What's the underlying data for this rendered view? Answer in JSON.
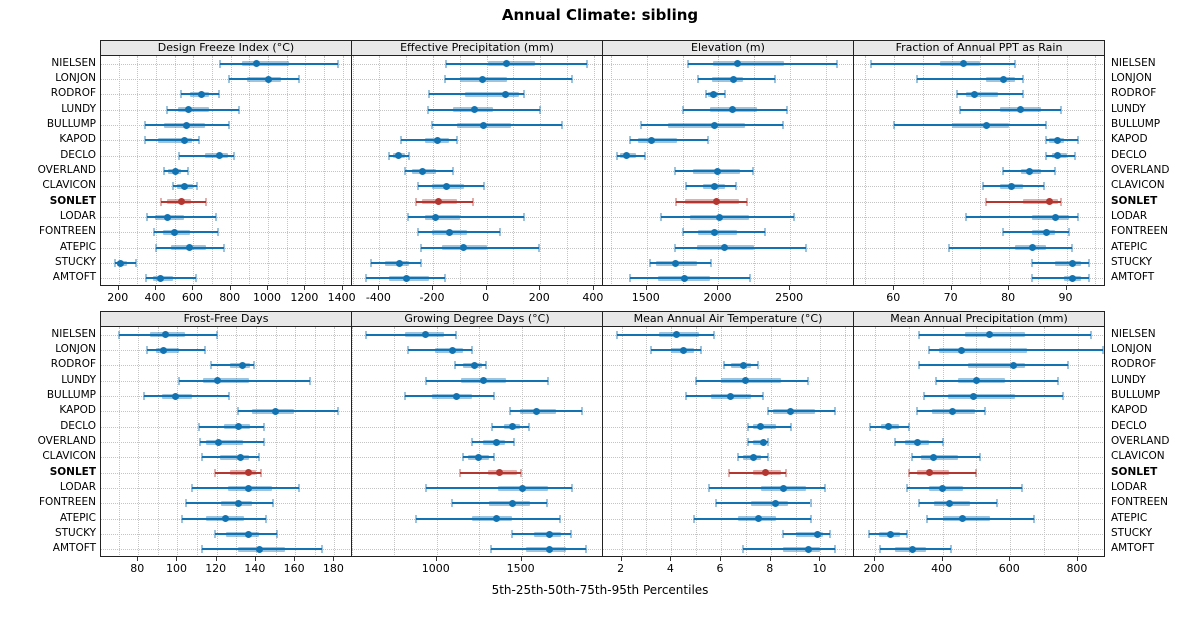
{
  "chart_data": {
    "type": "dotplot",
    "title": "Annual Climate: sibling",
    "xlabel": "5th-25th-50th-75th-95th Percentiles",
    "percentiles": [
      5,
      25,
      50,
      75,
      95
    ],
    "legend_position": "none",
    "grid_layout": {
      "rows": 2,
      "columns": 4
    },
    "sites_top_to_bottom": [
      "NIELSEN",
      "LONJON",
      "RODROF",
      "LUNDY",
      "BULLUMP",
      "KAPOD",
      "DECLO",
      "OVERLAND",
      "CLAVICON",
      "SONLET",
      "LODAR",
      "FONTREEN",
      "ATEPIC",
      "STUCKY",
      "AMTOFT"
    ],
    "highlight_site": "SONLET",
    "colors": {
      "series": "#1273b3",
      "series_band": "rgba(18,115,179,0.42)",
      "highlight": "#b33630",
      "highlight_band": "rgba(179,54,48,0.40)",
      "strip_bg": "#e8e8e8",
      "grid": "#c4c4c4",
      "border": "#222222"
    },
    "panels": [
      {
        "title": "Design Freeze Index (°C)",
        "xlim": [
          105,
          1450
        ],
        "ticks": [
          200,
          400,
          600,
          800,
          1000,
          1200,
          1400
        ],
        "grid_step": 100,
        "values": {
          "NIELSEN": [
            745,
            860,
            940,
            1110,
            1375
          ],
          "LONJON": [
            790,
            890,
            1000,
            1070,
            1165
          ],
          "RODROF": [
            535,
            580,
            645,
            685,
            735
          ],
          "LUNDY": [
            460,
            515,
            575,
            685,
            845
          ],
          "BULLUMP": [
            340,
            445,
            565,
            660,
            790
          ],
          "KAPOD": [
            340,
            410,
            555,
            595,
            630
          ],
          "DECLO": [
            525,
            660,
            740,
            785,
            820
          ],
          "OVERLAND": [
            445,
            465,
            505,
            535,
            570
          ],
          "CLAVICON": [
            490,
            510,
            550,
            600,
            620
          ],
          "SONLET": [
            425,
            460,
            535,
            585,
            670
          ],
          "LODAR": [
            350,
            395,
            460,
            550,
            720
          ],
          "FONTREEN": [
            390,
            435,
            500,
            580,
            730
          ],
          "ATEPIC": [
            400,
            480,
            580,
            670,
            765
          ],
          "STUCKY": [
            180,
            190,
            210,
            245,
            295
          ],
          "AMTOFT": [
            345,
            385,
            425,
            490,
            615
          ]
        }
      },
      {
        "title": "Effective Precipitation (mm)",
        "xlim": [
          -502,
          434
        ],
        "ticks": [
          -400,
          -200,
          0,
          200,
          400
        ],
        "grid_step": 100,
        "values": {
          "NIELSEN": [
            -150,
            5,
            75,
            180,
            375
          ],
          "LONJON": [
            -155,
            -100,
            -15,
            75,
            320
          ],
          "RODROF": [
            -215,
            -80,
            70,
            120,
            140
          ],
          "LUNDY": [
            -220,
            -125,
            -45,
            25,
            200
          ],
          "BULLUMP": [
            -205,
            -110,
            -10,
            90,
            280
          ],
          "KAPOD": [
            -320,
            -230,
            -185,
            -140,
            -110
          ],
          "DECLO": [
            -365,
            -350,
            -330,
            -305,
            -290
          ],
          "OVERLAND": [
            -305,
            -280,
            -240,
            -190,
            -125
          ],
          "CLAVICON": [
            -255,
            -205,
            -150,
            -85,
            -10
          ],
          "SONLET": [
            -265,
            -240,
            -180,
            -110,
            -50
          ],
          "LODAR": [
            -295,
            -230,
            -190,
            -100,
            140
          ],
          "FONTREEN": [
            -255,
            -205,
            -140,
            -75,
            50
          ],
          "ATEPIC": [
            -245,
            -165,
            -85,
            0,
            195
          ],
          "STUCKY": [
            -430,
            -380,
            -325,
            -290,
            -245
          ],
          "AMTOFT": [
            -450,
            -365,
            -300,
            -215,
            -155
          ]
        }
      },
      {
        "title": "Elevation (m)",
        "xlim": [
          1195,
          2945
        ],
        "ticks": [
          1500,
          2000,
          2500
        ],
        "grid_step": 250,
        "values": {
          "NIELSEN": [
            1785,
            1965,
            2135,
            2455,
            2825
          ],
          "LONJON": [
            1855,
            1955,
            2105,
            2170,
            2395
          ],
          "RODROF": [
            1910,
            1930,
            1965,
            2000,
            2045
          ],
          "LUNDY": [
            1750,
            1940,
            2100,
            2270,
            2480
          ],
          "BULLUMP": [
            1460,
            1650,
            1970,
            2185,
            2450
          ],
          "KAPOD": [
            1380,
            1440,
            1530,
            1710,
            1925
          ],
          "DECLO": [
            1295,
            1315,
            1360,
            1425,
            1490
          ],
          "OVERLAND": [
            1700,
            1825,
            1990,
            2150,
            2240
          ],
          "CLAVICON": [
            1775,
            1895,
            1975,
            2045,
            2125
          ],
          "SONLET": [
            1705,
            1765,
            1985,
            2140,
            2200
          ],
          "LODAR": [
            1600,
            1800,
            2010,
            2210,
            2525
          ],
          "FONTREEN": [
            1750,
            1860,
            1975,
            2130,
            2325
          ],
          "ATEPIC": [
            1700,
            1850,
            2045,
            2245,
            2610
          ],
          "STUCKY": [
            1525,
            1565,
            1700,
            1850,
            1945
          ],
          "AMTOFT": [
            1385,
            1580,
            1765,
            1940,
            2220
          ]
        }
      },
      {
        "title": "Fraction of Annual PPT as Rain",
        "xlim": [
          53,
          96.7
        ],
        "ticks": [
          60,
          70,
          80,
          90
        ],
        "grid_step": 5,
        "values": {
          "NIELSEN": [
            56,
            68,
            72,
            75,
            81
          ],
          "LONJON": [
            64,
            76,
            79,
            81,
            82.5
          ],
          "RODROF": [
            71,
            72.5,
            74,
            78,
            82.5
          ],
          "LUNDY": [
            71.5,
            78.5,
            82,
            85.5,
            89
          ],
          "BULLUMP": [
            60,
            70,
            76,
            80,
            86.5
          ],
          "KAPOD": [
            86.5,
            87,
            88.5,
            89.5,
            92
          ],
          "DECLO": [
            86.5,
            87.5,
            88.5,
            90,
            91.5
          ],
          "OVERLAND": [
            79,
            82,
            83.5,
            85.5,
            88
          ],
          "CLAVICON": [
            75.5,
            78.5,
            80.5,
            82.5,
            86
          ],
          "SONLET": [
            76,
            82.5,
            87,
            88.5,
            89
          ],
          "LODAR": [
            72.5,
            84,
            88,
            90.5,
            92
          ],
          "FONTREEN": [
            79,
            84,
            86.5,
            88,
            90.5
          ],
          "ATEPIC": [
            69.5,
            81,
            84,
            86.5,
            91
          ],
          "STUCKY": [
            84,
            88,
            91,
            92.5,
            94
          ],
          "AMTOFT": [
            84,
            89.5,
            91,
            92.5,
            94
          ]
        }
      },
      {
        "title": "Frost-Free Days",
        "xlim": [
          61,
          189
        ],
        "ticks": [
          80,
          100,
          120,
          140,
          160,
          180
        ],
        "grid_step": 10,
        "values": {
          "NIELSEN": [
            70,
            86,
            94,
            104,
            120
          ],
          "LONJON": [
            84.5,
            89,
            93,
            101,
            114
          ],
          "RODROF": [
            117,
            127,
            133,
            137,
            139
          ],
          "LUNDY": [
            101,
            113,
            120.5,
            136.5,
            167.5
          ],
          "BULLUMP": [
            83,
            92,
            99,
            107.5,
            126.5
          ],
          "KAPOD": [
            131,
            138,
            150,
            159.5,
            182
          ],
          "DECLO": [
            111,
            123.5,
            131,
            137,
            144
          ],
          "OVERLAND": [
            111.5,
            114.5,
            121,
            133.5,
            144
          ],
          "CLAVICON": [
            112.5,
            121.5,
            132,
            136.5,
            141.5
          ],
          "SONLET": [
            119,
            127,
            136,
            140,
            142.5
          ],
          "LODAR": [
            107.5,
            126,
            136,
            148,
            162
          ],
          "FONTREEN": [
            104.5,
            122,
            131,
            138,
            148.5
          ],
          "ATEPIC": [
            102.5,
            114.5,
            124.5,
            134,
            145
          ],
          "STUCKY": [
            119,
            124.5,
            136,
            141.5,
            151
          ],
          "AMTOFT": [
            112.5,
            131,
            142,
            155,
            173.5
          ]
        }
      },
      {
        "title": "Growing Degree Days (°C)",
        "xlim": [
          500,
          1980
        ],
        "ticks": [
          1000,
          1500
        ],
        "grid_step": 250,
        "values": {
          "NIELSEN": [
            585,
            815,
            935,
            1045,
            1115
          ],
          "LONJON": [
            830,
            990,
            1090,
            1155,
            1210
          ],
          "RODROF": [
            1110,
            1155,
            1220,
            1265,
            1290
          ],
          "LUNDY": [
            935,
            1145,
            1275,
            1410,
            1655
          ],
          "BULLUMP": [
            815,
            970,
            1115,
            1205,
            1335
          ],
          "KAPOD": [
            1430,
            1490,
            1585,
            1700,
            1855
          ],
          "DECLO": [
            1325,
            1395,
            1445,
            1490,
            1545
          ],
          "OVERLAND": [
            1210,
            1270,
            1350,
            1400,
            1455
          ],
          "CLAVICON": [
            1155,
            1185,
            1245,
            1305,
            1335
          ],
          "SONLET": [
            1135,
            1300,
            1370,
            1475,
            1495
          ],
          "LODAR": [
            935,
            1360,
            1505,
            1655,
            1800
          ],
          "FONTREEN": [
            1090,
            1310,
            1445,
            1550,
            1650
          ],
          "ATEPIC": [
            875,
            1210,
            1350,
            1445,
            1725
          ],
          "STUCKY": [
            1445,
            1575,
            1665,
            1735,
            1790
          ],
          "AMTOFT": [
            1320,
            1525,
            1665,
            1760,
            1880
          ]
        }
      },
      {
        "title": "Mean Annual Air Temperature (°C)",
        "xlim": [
          1.25,
          11.35
        ],
        "ticks": [
          2,
          4,
          6,
          8,
          10
        ],
        "grid_step": 1,
        "values": {
          "NIELSEN": [
            1.8,
            3.5,
            4.2,
            5.1,
            5.7
          ],
          "LONJON": [
            3.2,
            4.0,
            4.5,
            4.9,
            5.2
          ],
          "RODROF": [
            6.1,
            6.4,
            6.9,
            7.2,
            7.5
          ],
          "LUNDY": [
            5.0,
            6.0,
            7.0,
            8.4,
            9.5
          ],
          "BULLUMP": [
            4.6,
            5.6,
            6.4,
            7.2,
            7.7
          ],
          "KAPOD": [
            7.9,
            8.1,
            8.8,
            9.8,
            10.6
          ],
          "DECLO": [
            7.1,
            7.3,
            7.6,
            8.2,
            8.8
          ],
          "OVERLAND": [
            7.1,
            7.3,
            7.7,
            7.8,
            7.9
          ],
          "CLAVICON": [
            6.7,
            6.9,
            7.3,
            7.6,
            7.9
          ],
          "SONLET": [
            6.3,
            7.3,
            7.8,
            8.4,
            8.6
          ],
          "LODAR": [
            5.5,
            7.6,
            8.5,
            9.4,
            10.2
          ],
          "FONTREEN": [
            5.8,
            7.2,
            8.2,
            8.7,
            9.6
          ],
          "ATEPIC": [
            4.9,
            6.7,
            7.5,
            8.2,
            9.6
          ],
          "STUCKY": [
            8.5,
            9.0,
            9.9,
            10.1,
            10.4
          ],
          "AMTOFT": [
            6.9,
            8.5,
            9.5,
            10.0,
            10.6
          ]
        }
      },
      {
        "title": "Mean Annual Precipitation (mm)",
        "xlim": [
          138,
          880
        ],
        "ticks": [
          200,
          400,
          600,
          800
        ],
        "grid_step": 100,
        "values": {
          "NIELSEN": [
            330,
            465,
            540,
            645,
            840
          ],
          "LONJON": [
            360,
            390,
            455,
            650,
            875
          ],
          "RODROF": [
            330,
            475,
            610,
            645,
            770
          ],
          "LUNDY": [
            380,
            445,
            500,
            585,
            740
          ],
          "BULLUMP": [
            345,
            415,
            490,
            615,
            755
          ],
          "KAPOD": [
            325,
            370,
            430,
            495,
            525
          ],
          "DECLO": [
            185,
            218,
            240,
            270,
            300
          ],
          "OVERLAND": [
            260,
            290,
            325,
            360,
            400
          ],
          "CLAVICON": [
            310,
            335,
            373,
            445,
            510
          ],
          "SONLET": [
            300,
            325,
            360,
            420,
            500
          ],
          "LODAR": [
            295,
            360,
            400,
            460,
            635
          ],
          "FONTREEN": [
            330,
            375,
            420,
            480,
            560
          ],
          "ATEPIC": [
            355,
            400,
            460,
            540,
            670
          ],
          "STUCKY": [
            183,
            213,
            245,
            275,
            295
          ],
          "AMTOFT": [
            215,
            260,
            310,
            350,
            425
          ]
        }
      }
    ]
  }
}
